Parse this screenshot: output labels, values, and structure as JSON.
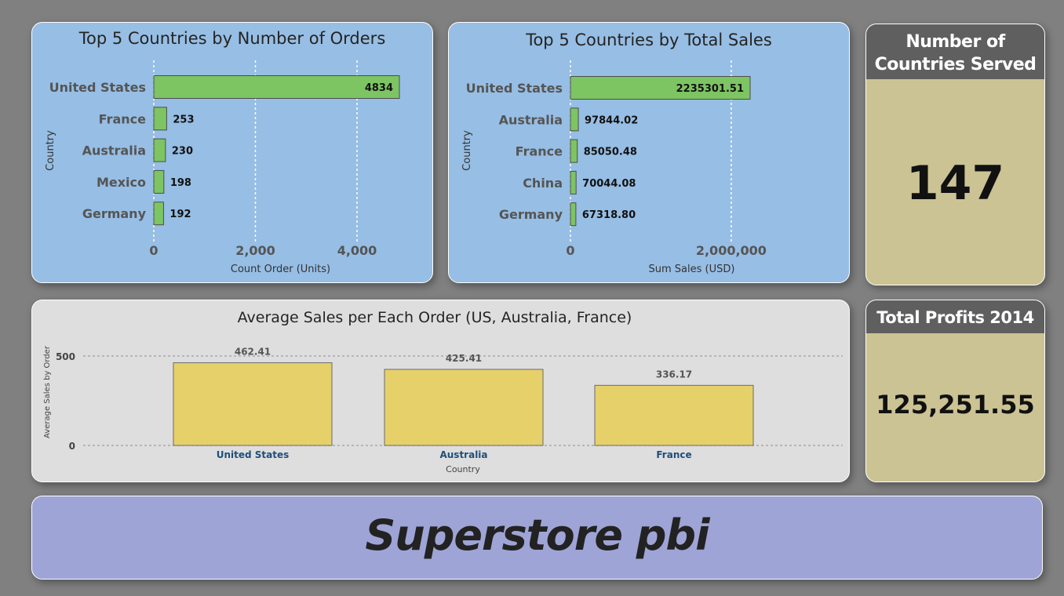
{
  "dashboard": {
    "banner_title": "Superstore pbi",
    "kpi_countries": {
      "title_line1": "Number of",
      "title_line2": "Countries Served",
      "value": "147"
    },
    "kpi_profits": {
      "title": "Total Profits 2014",
      "value": "125,251.55"
    }
  },
  "colors": {
    "bar_green": "#7dc462",
    "bar_yellow": "#e6d06a",
    "panel_blue": "#97bee4",
    "panel_grey": "#dedede",
    "kpi_bg": "#cbc394",
    "label_blue": "#1f4e79"
  },
  "chart_data": [
    {
      "type": "bar",
      "orientation": "horizontal",
      "title": "Top 5 Countries by Number of Orders",
      "categories": [
        "United States",
        "France",
        "Australia",
        "Mexico",
        "Germany"
      ],
      "values": [
        4834,
        253,
        230,
        198,
        192
      ],
      "value_labels": [
        "4834",
        "253",
        "230",
        "198",
        "192"
      ],
      "xlabel": "Count Order (Units)",
      "ylabel": "Country",
      "xlim": [
        0,
        4834
      ],
      "xticks": [
        0,
        2000,
        4000
      ],
      "xtick_labels": [
        "0",
        "2,000",
        "4,000"
      ],
      "grid": true
    },
    {
      "type": "bar",
      "orientation": "horizontal",
      "title": "Top 5 Countries by Total Sales",
      "categories": [
        "United States",
        "Australia",
        "France",
        "China",
        "Germany"
      ],
      "values": [
        2235301.51,
        97844.02,
        85050.48,
        70044.08,
        67318.8
      ],
      "value_labels": [
        "2235301.51",
        "97844.02",
        "85050.48",
        "70044.08",
        "67318.80"
      ],
      "xlabel": "Sum Sales (USD)",
      "ylabel": "Country",
      "xlim": [
        0,
        2235301.51
      ],
      "xticks": [
        0,
        2000000
      ],
      "xtick_labels": [
        "0",
        "2,000,000"
      ],
      "grid": true
    },
    {
      "type": "bar",
      "orientation": "vertical",
      "title": "Average Sales per Each Order (US, Australia, France)",
      "categories": [
        "United States",
        "Australia",
        "France"
      ],
      "values": [
        462.41,
        425.41,
        336.17
      ],
      "value_labels": [
        "462.41",
        "425.41",
        "336.17"
      ],
      "xlabel": "Country",
      "ylabel": "Average Sales by Order",
      "ylim": [
        0,
        500
      ],
      "yticks": [
        0,
        500
      ],
      "ytick_labels": [
        "0",
        "500"
      ],
      "grid": true
    }
  ]
}
